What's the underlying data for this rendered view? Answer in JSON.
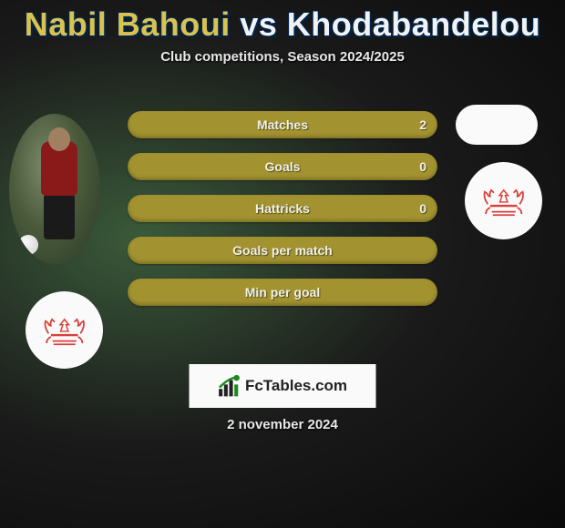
{
  "title": {
    "player1": "Nabil Bahoui",
    "player2": "Khodabandelou",
    "color1": "#d9c24f",
    "color2": "#f2f2f2"
  },
  "subtitle": "Club competitions, Season 2024/2025",
  "bars": [
    {
      "label": "Matches",
      "left": "",
      "right": "2",
      "base_color": "#a39330",
      "fill_right_color": "#003a7a",
      "fill_right_width": 0
    },
    {
      "label": "Goals",
      "left": "",
      "right": "0",
      "base_color": "#a39330",
      "fill_right_color": "#003a7a",
      "fill_right_width": 0
    },
    {
      "label": "Hattricks",
      "left": "",
      "right": "0",
      "base_color": "#a39330",
      "fill_right_color": "#003a7a",
      "fill_right_width": 0
    },
    {
      "label": "Goals per match",
      "left": "",
      "right": "",
      "base_color": "#a39330",
      "fill_right_color": "#003a7a",
      "fill_right_width": 0
    },
    {
      "label": "Min per goal",
      "left": "",
      "right": "",
      "base_color": "#a39330",
      "fill_right_color": "#003a7a",
      "fill_right_width": 0
    }
  ],
  "fctables_label": "FcTables.com",
  "date": "2 november 2024",
  "club_logo_color": "#d8403a",
  "background_color": "#0a0a0a"
}
